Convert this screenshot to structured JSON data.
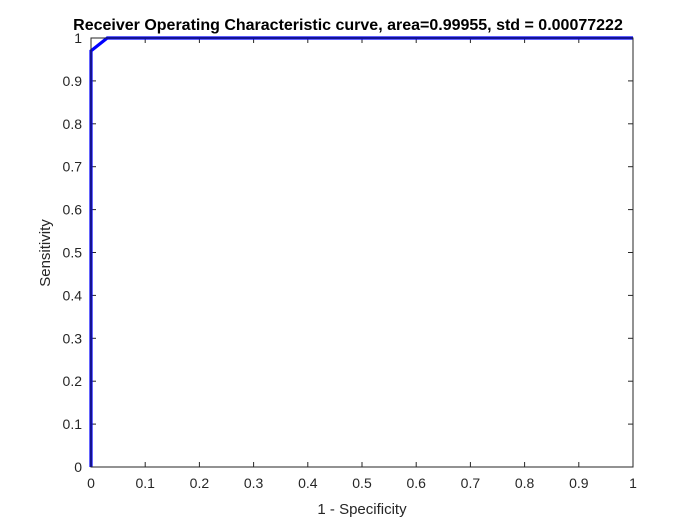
{
  "chart_data": {
    "type": "line",
    "title": "Receiver Operating Characteristic curve, area=0.99955, std = 0.00077222",
    "xlabel": "1 - Specificity",
    "ylabel": "Sensitivity",
    "xlim": [
      0,
      1
    ],
    "ylim": [
      0,
      1
    ],
    "x_ticks": [
      0,
      0.1,
      0.2,
      0.3,
      0.4,
      0.5,
      0.6,
      0.7,
      0.8,
      0.9,
      1
    ],
    "y_ticks": [
      0,
      0.1,
      0.2,
      0.3,
      0.4,
      0.5,
      0.6,
      0.7,
      0.8,
      0.9,
      1
    ],
    "x_tick_labels": [
      "0",
      "0.1",
      "0.2",
      "0.3",
      "0.4",
      "0.5",
      "0.6",
      "0.7",
      "0.8",
      "0.9",
      "1"
    ],
    "y_tick_labels": [
      "0",
      "0.1",
      "0.2",
      "0.3",
      "0.4",
      "0.5",
      "0.6",
      "0.7",
      "0.8",
      "0.9",
      "1"
    ],
    "grid": false,
    "series": [
      {
        "color": "#0000ff",
        "x": [
          0,
          0,
          0,
          0.03,
          1
        ],
        "y": [
          0,
          0.5,
          0.97,
          1.0,
          1.0
        ]
      }
    ]
  }
}
